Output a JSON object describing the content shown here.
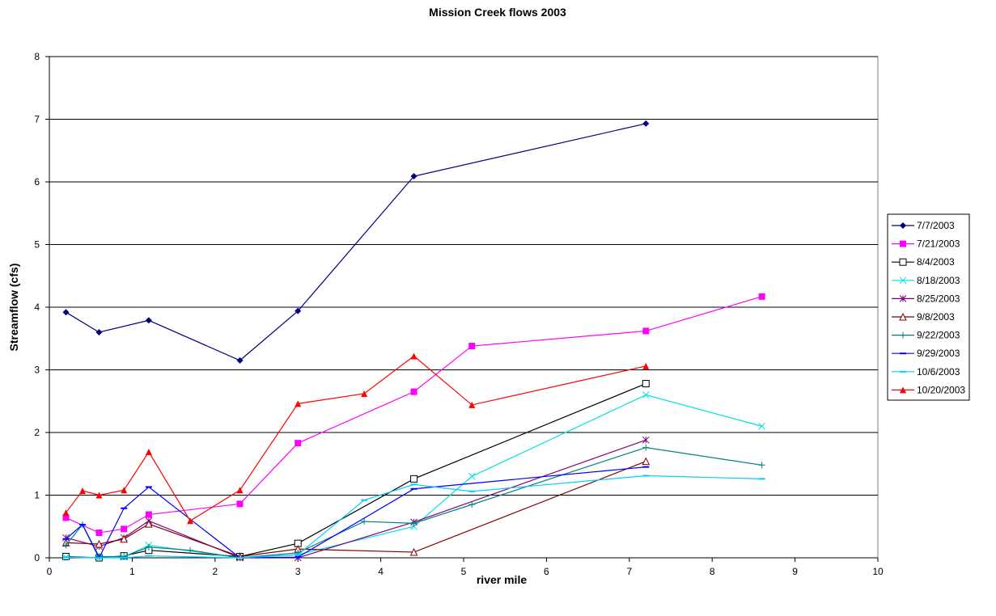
{
  "chart_data": {
    "type": "line",
    "title": "Mission Creek flows 2003",
    "xlabel": "river mile",
    "ylabel": "Streamflow (cfs)",
    "xlim": [
      0,
      10
    ],
    "xticks": [
      0,
      1,
      2,
      3,
      4,
      5,
      6,
      7,
      8,
      9,
      10
    ],
    "ylim": [
      0,
      8
    ],
    "yticks": [
      0,
      1,
      2,
      3,
      4,
      5,
      6,
      7,
      8
    ],
    "grid": true,
    "legend": "right",
    "series": [
      {
        "name": "7/7/2003",
        "color": "#000080",
        "marker": "diamond",
        "x": [
          0.2,
          0.6,
          1.2,
          2.3,
          3.0,
          4.4,
          7.2
        ],
        "values": [
          3.92,
          3.6,
          3.79,
          3.15,
          3.94,
          6.09,
          6.93
        ]
      },
      {
        "name": "7/21/2003",
        "color": "#ff00ff",
        "marker": "square",
        "x": [
          0.2,
          0.6,
          0.9,
          1.2,
          2.3,
          3.0,
          4.4,
          5.1,
          7.2,
          8.6
        ],
        "values": [
          0.64,
          0.4,
          0.46,
          0.69,
          0.86,
          1.83,
          2.65,
          3.38,
          3.62,
          4.17
        ]
      },
      {
        "name": "8/4/2003",
        "color": "#000000",
        "marker": "open-square",
        "x": [
          0.2,
          0.6,
          0.9,
          1.2,
          2.3,
          3.0,
          4.4,
          7.2
        ],
        "values": [
          0.02,
          0.0,
          0.03,
          0.12,
          0.02,
          0.23,
          1.26,
          2.78
        ]
      },
      {
        "name": "8/18/2003",
        "color": "#00e0e0",
        "marker": "x",
        "x": [
          0.2,
          0.6,
          0.9,
          1.2,
          2.3,
          3.0,
          4.4,
          5.1,
          7.2,
          8.6
        ],
        "values": [
          0.01,
          0.0,
          0.01,
          0.2,
          0.0,
          0.05,
          0.5,
          1.3,
          2.6,
          2.1
        ]
      },
      {
        "name": "8/25/2003",
        "color": "#800080",
        "marker": "star",
        "x": [
          0.2,
          0.6,
          0.9,
          1.2,
          2.3,
          3.0,
          4.4,
          7.2
        ],
        "values": [
          0.32,
          0.18,
          0.32,
          0.59,
          0.0,
          0.0,
          0.57,
          1.88
        ]
      },
      {
        "name": "9/8/2003",
        "color": "#800000",
        "marker": "open-triangle",
        "x": [
          0.2,
          0.6,
          0.9,
          1.2,
          2.3,
          3.0,
          4.4,
          7.2
        ],
        "values": [
          0.24,
          0.22,
          0.3,
          0.54,
          0.02,
          0.14,
          0.09,
          1.54
        ]
      },
      {
        "name": "9/22/2003",
        "color": "#008080",
        "marker": "plus",
        "x": [
          0.2,
          0.4,
          0.6,
          0.9,
          1.2,
          1.7,
          2.3,
          3.0,
          3.8,
          4.4,
          5.1,
          7.2,
          8.6
        ],
        "values": [
          0.2,
          0.53,
          0.02,
          0.02,
          0.17,
          0.12,
          0.0,
          0.08,
          0.58,
          0.55,
          0.85,
          1.76,
          1.48
        ]
      },
      {
        "name": "9/29/2003",
        "color": "#0000ff",
        "marker": "dash",
        "x": [
          0.2,
          0.4,
          0.6,
          0.9,
          1.2,
          2.3,
          3.0,
          4.4,
          7.2
        ],
        "values": [
          0.3,
          0.53,
          0.0,
          0.79,
          1.13,
          0.0,
          0.01,
          1.1,
          1.45
        ]
      },
      {
        "name": "10/6/2003",
        "color": "#00ccff",
        "marker": "dash",
        "x": [
          0.2,
          0.6,
          0.9,
          1.2,
          2.3,
          3.0,
          3.8,
          4.4,
          5.1,
          7.2,
          8.6
        ],
        "values": [
          0.01,
          0.0,
          0.0,
          0.03,
          0.0,
          0.05,
          0.92,
          1.17,
          1.06,
          1.31,
          1.26
        ]
      },
      {
        "name": "10/20/2003",
        "color": "#ff0000",
        "marker": "triangle",
        "x": [
          0.2,
          0.4,
          0.6,
          0.9,
          1.2,
          1.7,
          2.3,
          3.0,
          3.8,
          4.4,
          5.1,
          7.2
        ],
        "values": [
          0.72,
          1.07,
          1.0,
          1.08,
          1.69,
          0.59,
          1.08,
          2.46,
          2.62,
          3.22,
          2.44,
          3.06
        ]
      }
    ]
  }
}
